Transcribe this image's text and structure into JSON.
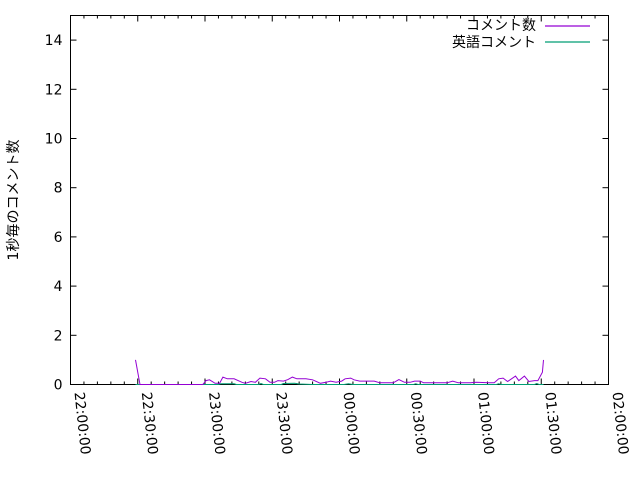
{
  "chart_data": {
    "type": "line",
    "title": "",
    "xlabel": "",
    "ylabel": "1秒毎のコメント数",
    "xlim": [
      "22:00:00",
      "02:00:00"
    ],
    "ylim": [
      0,
      15
    ],
    "grid": false,
    "legend_placement": "top-right",
    "x_ticks": [
      "22:00:00",
      "22:30:00",
      "23:00:00",
      "23:30:00",
      "00:00:00",
      "00:30:00",
      "01:00:00",
      "01:30:00",
      "02:00:00"
    ],
    "y_ticks": [
      "0",
      "2",
      "4",
      "6",
      "8",
      "10",
      "12",
      "14"
    ],
    "series": [
      {
        "name": "コメント数",
        "color": "#9400d3",
        "points": [
          [
            "22:29:00",
            1.0
          ],
          [
            "22:31:00",
            0
          ],
          [
            "22:40:00",
            0
          ],
          [
            "22:41:00",
            0
          ],
          [
            "22:59:00",
            0
          ],
          [
            "23:00:30",
            0.16
          ],
          [
            "23:02:00",
            0.19
          ],
          [
            "23:04:30",
            0.05
          ],
          [
            "23:06:30",
            0.05
          ],
          [
            "23:08:00",
            0.3
          ],
          [
            "23:10:00",
            0.23
          ],
          [
            "23:13:00",
            0.23
          ],
          [
            "23:16:30",
            0.09
          ],
          [
            "23:18:00",
            0.05
          ],
          [
            "23:20:30",
            0.12
          ],
          [
            "23:22:30",
            0.09
          ],
          [
            "23:24:30",
            0.26
          ],
          [
            "23:27:00",
            0.23
          ],
          [
            "23:29:00",
            0.09
          ],
          [
            "23:31:00",
            0.09
          ],
          [
            "23:32:30",
            0.16
          ],
          [
            "23:35:00",
            0.14
          ],
          [
            "23:37:00",
            0.2
          ],
          [
            "23:39:00",
            0.3
          ],
          [
            "23:41:00",
            0.23
          ],
          [
            "23:45:00",
            0.23
          ],
          [
            "23:48:00",
            0.19
          ],
          [
            "23:51:30",
            0.05
          ],
          [
            "23:54:00",
            0.09
          ],
          [
            "23:56:00",
            0.14
          ],
          [
            "23:58:30",
            0.09
          ],
          [
            "00:01:00",
            0.14
          ],
          [
            "00:02:30",
            0.23
          ],
          [
            "00:05:00",
            0.26
          ],
          [
            "00:06:30",
            0.19
          ],
          [
            "00:09:00",
            0.14
          ],
          [
            "00:15:30",
            0.14
          ],
          [
            "00:18:00",
            0.07
          ],
          [
            "00:24:00",
            0.07
          ],
          [
            "00:26:30",
            0.2
          ],
          [
            "00:29:00",
            0.09
          ],
          [
            "00:31:30",
            0.09
          ],
          [
            "00:33:30",
            0.14
          ],
          [
            "00:36:00",
            0.14
          ],
          [
            "00:37:30",
            0.07
          ],
          [
            "00:44:00",
            0.07
          ],
          [
            "00:48:00",
            0.07
          ],
          [
            "00:50:30",
            0.14
          ],
          [
            "00:53:00",
            0.07
          ],
          [
            "00:58:30",
            0.07
          ],
          [
            "01:01:00",
            0.09
          ],
          [
            "01:06:30",
            0.07
          ],
          [
            "01:09:00",
            0.07
          ],
          [
            "01:11:00",
            0.23
          ],
          [
            "01:13:00",
            0.26
          ],
          [
            "01:15:00",
            0.12
          ],
          [
            "01:18:30",
            0.34
          ],
          [
            "01:20:00",
            0.16
          ],
          [
            "01:22:30",
            0.34
          ],
          [
            "01:24:30",
            0.12
          ],
          [
            "01:27:00",
            0.16
          ],
          [
            "01:28:30",
            0.16
          ],
          [
            "01:30:30",
            0.5
          ],
          [
            "01:31:00",
            1.0
          ]
        ]
      },
      {
        "name": "英語コメント",
        "color": "#009e73",
        "points": [
          [
            "22:29:00",
            0
          ],
          [
            "23:06:00",
            0
          ],
          [
            "23:07:00",
            0.03
          ],
          [
            "23:13:00",
            0.03
          ],
          [
            "23:14:00",
            0
          ],
          [
            "23:24:00",
            0
          ],
          [
            "23:25:00",
            0.04
          ],
          [
            "23:26:00",
            0
          ],
          [
            "23:34:00",
            0
          ],
          [
            "23:35:00",
            0.04
          ],
          [
            "23:40:00",
            0.05
          ],
          [
            "23:42:00",
            0.02
          ],
          [
            "23:48:00",
            0
          ],
          [
            "00:02:00",
            0
          ],
          [
            "00:04:00",
            0.03
          ],
          [
            "00:06:00",
            0
          ],
          [
            "00:33:00",
            0
          ],
          [
            "00:34:00",
            0.03
          ],
          [
            "00:35:00",
            0
          ],
          [
            "01:10:00",
            0
          ],
          [
            "01:11:00",
            0.03
          ],
          [
            "01:12:00",
            0
          ],
          [
            "01:27:00",
            0
          ],
          [
            "01:28:00",
            0.04
          ],
          [
            "01:29:00",
            0
          ],
          [
            "01:31:00",
            0
          ]
        ]
      }
    ]
  }
}
